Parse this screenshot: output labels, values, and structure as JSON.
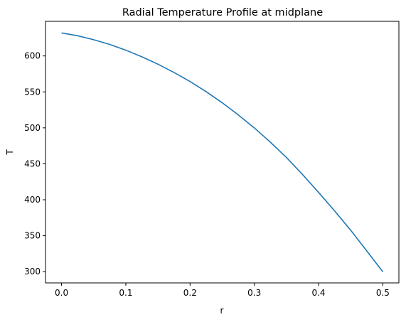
{
  "chart_data": {
    "type": "line",
    "title": "Radial Temperature Profile at midplane",
    "xlabel": "r",
    "ylabel": "T",
    "xlim": [
      -0.025,
      0.525
    ],
    "ylim": [
      284.4,
      648.1
    ],
    "xticks": [
      0.0,
      0.1,
      0.2,
      0.3,
      0.4,
      0.5
    ],
    "xtick_labels": [
      "0.0",
      "0.1",
      "0.2",
      "0.3",
      "0.4",
      "0.5"
    ],
    "yticks": [
      300,
      350,
      400,
      450,
      500,
      550,
      600
    ],
    "ytick_labels": [
      "300",
      "350",
      "400",
      "450",
      "500",
      "550",
      "600"
    ],
    "grid": false,
    "series": [
      {
        "color": "#1f77b4",
        "x": [
          0.0,
          0.025,
          0.05,
          0.075,
          0.1,
          0.125,
          0.15,
          0.175,
          0.2,
          0.225,
          0.25,
          0.275,
          0.3,
          0.325,
          0.35,
          0.375,
          0.4,
          0.425,
          0.45,
          0.475,
          0.5
        ],
        "y": [
          632.0,
          628.0,
          622.5,
          616.0,
          608.0,
          598.8,
          588.5,
          577.0,
          564.4,
          550.3,
          534.9,
          518.0,
          499.9,
          480.0,
          458.8,
          435.2,
          410.2,
          384.5,
          357.6,
          328.9,
          299.8
        ]
      }
    ]
  }
}
